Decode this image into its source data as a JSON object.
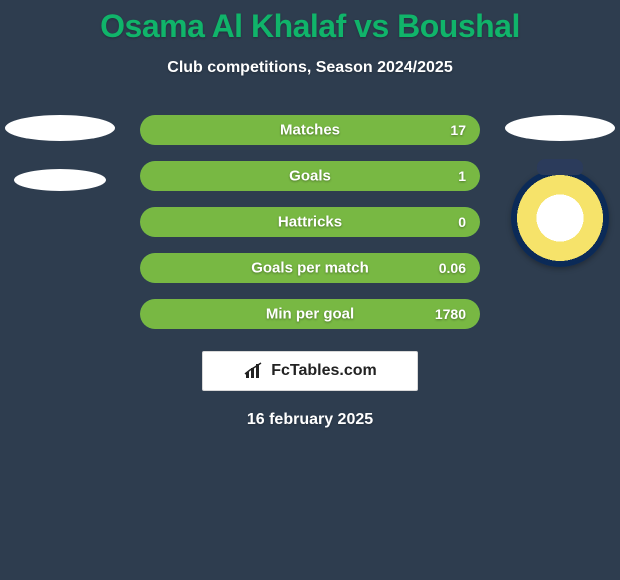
{
  "background_color": "#2e3d4f",
  "title": {
    "text": "Osama Al Khalaf vs Boushal",
    "color": "#10b46a",
    "fontsize": 32
  },
  "subtitle": {
    "text": "Club competitions, Season 2024/2025",
    "color": "#ffffff",
    "fontsize": 16
  },
  "stats": {
    "bar_track_color": "#3c8a54",
    "bar_fill_color": "#78b843",
    "label_color": "#ffffff",
    "rows": [
      {
        "label": "Matches",
        "value_right": "17",
        "fill_pct": 100
      },
      {
        "label": "Goals",
        "value_right": "1",
        "fill_pct": 100
      },
      {
        "label": "Hattricks",
        "value_right": "0",
        "fill_pct": 100
      },
      {
        "label": "Goals per match",
        "value_right": "0.06",
        "fill_pct": 100
      },
      {
        "label": "Min per goal",
        "value_right": "1780",
        "fill_pct": 100
      }
    ]
  },
  "left_player": {
    "placeholders": 2
  },
  "right_player": {
    "placeholders": 1,
    "has_crest": true
  },
  "brand": {
    "text": "FcTables.com",
    "icon_name": "bar-chart-icon"
  },
  "date": "16 february 2025"
}
